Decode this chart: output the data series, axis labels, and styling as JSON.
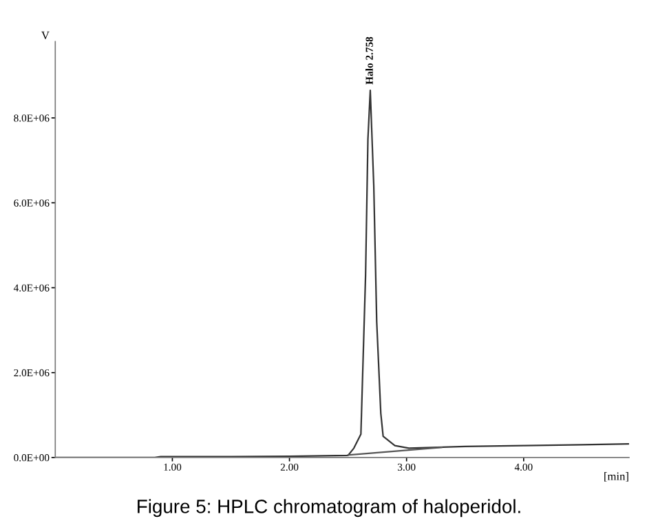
{
  "chart_data": {
    "type": "line",
    "xlabel": "[min]",
    "ylabel": "V",
    "xlim": [
      0,
      4.9
    ],
    "ylim": [
      0,
      9800000
    ],
    "xticks": [
      {
        "value": 1,
        "label": "1.00"
      },
      {
        "value": 2,
        "label": "2.00"
      },
      {
        "value": 3,
        "label": "3.00"
      },
      {
        "value": 4,
        "label": "4.00"
      }
    ],
    "yticks": [
      {
        "value": 0,
        "label": "0.0E+00"
      },
      {
        "value": 2000000,
        "label": "2.0E+06"
      },
      {
        "value": 4000000,
        "label": "4.0E+06"
      },
      {
        "value": 6000000,
        "label": "6.0E+06"
      },
      {
        "value": 8000000,
        "label": "8.0E+06"
      }
    ],
    "grid": false,
    "legend": false,
    "marker": "none",
    "line_style": "solid",
    "series": [
      {
        "color": "#333333",
        "x": [
          0,
          0.85,
          0.9,
          1.5,
          2.0,
          2.5,
          2.55,
          2.61,
          2.65,
          2.67,
          2.69,
          2.72,
          2.745,
          2.78,
          2.8,
          2.9,
          3.02,
          3.5,
          4.0,
          4.5,
          4.9
        ],
        "values": [
          0,
          0,
          20000,
          20000,
          30000,
          50000,
          220000,
          550000,
          4300000,
          7500000,
          8650000,
          6400000,
          3200000,
          1040000,
          500000,
          280000,
          220000,
          260000,
          280000,
          300000,
          320000
        ]
      },
      {
        "color": "#555555",
        "x": [
          2.5,
          3.3
        ],
        "values": [
          60000,
          240000
        ]
      }
    ],
    "annotations": [
      {
        "text": "Halo 2.758",
        "x": 2.69,
        "y": 8650000
      },
      "Figure 5: HPLC chromatogram of haloperidol."
    ]
  }
}
